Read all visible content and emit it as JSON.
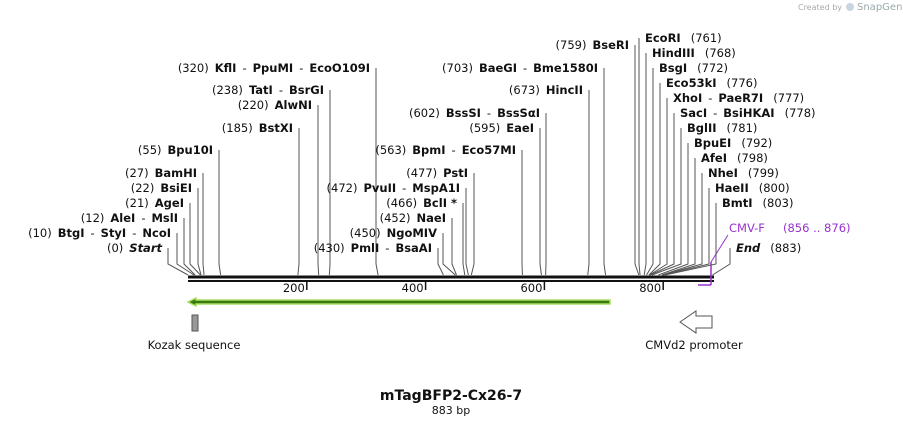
{
  "credit": {
    "prefix": "Created by",
    "brand": "SnapGene"
  },
  "title": "mTagBFP2-Cx26-7",
  "subtitle": "883 bp",
  "site_separator": "-",
  "sites": [
    {
      "position": {
        "value": 0,
        "label": "(0)"
      },
      "names": [
        "Start"
      ]
    },
    {
      "position": {
        "value": 10,
        "label": "(10)"
      },
      "names": [
        "BtgI",
        "StyI",
        "NcoI"
      ]
    },
    {
      "position": {
        "value": 12,
        "label": "(12)"
      },
      "names": [
        "AleI",
        "MslI"
      ]
    },
    {
      "position": {
        "value": 21,
        "label": "(21)"
      },
      "names": [
        "AgeI"
      ]
    },
    {
      "position": {
        "value": 22,
        "label": "(22)"
      },
      "names": [
        "BsiEI"
      ]
    },
    {
      "position": {
        "value": 27,
        "label": "(27)"
      },
      "names": [
        "BamHI"
      ]
    },
    {
      "position": {
        "value": 55,
        "label": "(55)"
      },
      "names": [
        "Bpu10I"
      ]
    },
    {
      "position": {
        "value": 185,
        "label": "(185)"
      },
      "names": [
        "BstXI"
      ]
    },
    {
      "position": {
        "value": 220,
        "label": "(220)"
      },
      "names": [
        "AlwNI"
      ]
    },
    {
      "position": {
        "value": 238,
        "label": "(238)"
      },
      "names": [
        "TatI",
        "BsrGI"
      ]
    },
    {
      "position": {
        "value": 320,
        "label": "(320)"
      },
      "names": [
        "KflI",
        "PpuMI",
        "EcoO109I"
      ]
    },
    {
      "position": {
        "value": 430,
        "label": "(430)"
      },
      "names": [
        "PmlI",
        "BsaAI"
      ]
    },
    {
      "position": {
        "value": 450,
        "label": "(450)"
      },
      "names": [
        "NgoMIV"
      ]
    },
    {
      "position": {
        "value": 452,
        "label": "(452)"
      },
      "names": [
        "NaeI"
      ]
    },
    {
      "position": {
        "value": 466,
        "label": "(466)"
      },
      "names": [
        "BclI *"
      ]
    },
    {
      "position": {
        "value": 472,
        "label": "(472)"
      },
      "names": [
        "PvuII",
        "MspA1I"
      ]
    },
    {
      "position": {
        "value": 477,
        "label": "(477)"
      },
      "names": [
        "PstI"
      ]
    },
    {
      "position": {
        "value": 563,
        "label": "(563)"
      },
      "names": [
        "BpmI",
        "Eco57MI"
      ]
    },
    {
      "position": {
        "value": 595,
        "label": "(595)"
      },
      "names": [
        "EaeI"
      ]
    },
    {
      "position": {
        "value": 602,
        "label": "(602)"
      },
      "names": [
        "BssSI",
        "BssSαI"
      ]
    },
    {
      "position": {
        "value": 673,
        "label": "(673)"
      },
      "names": [
        "HincII"
      ]
    },
    {
      "position": {
        "value": 703,
        "label": "(703)"
      },
      "names": [
        "BaeGI",
        "Bme1580I"
      ]
    },
    {
      "position": {
        "value": 759,
        "label": "(759)"
      },
      "names": [
        "BseRI"
      ]
    },
    {
      "position": {
        "value": 761,
        "label": "(761)"
      },
      "names": [
        "EcoRI"
      ]
    },
    {
      "position": {
        "value": 768,
        "label": "(768)"
      },
      "names": [
        "HindIII"
      ]
    },
    {
      "position": {
        "value": 772,
        "label": "(772)"
      },
      "names": [
        "BsgI"
      ]
    },
    {
      "position": {
        "value": 776,
        "label": "(776)"
      },
      "names": [
        "Eco53kI"
      ]
    },
    {
      "position": {
        "value": 777,
        "label": "(777)"
      },
      "names": [
        "XhoI",
        "PaeR7I"
      ]
    },
    {
      "position": {
        "value": 778,
        "label": "(778)"
      },
      "names": [
        "SacI",
        "BsiHKAI"
      ]
    },
    {
      "position": {
        "value": 781,
        "label": "(781)"
      },
      "names": [
        "BglII"
      ]
    },
    {
      "position": {
        "value": 792,
        "label": "(792)"
      },
      "names": [
        "BpuEI"
      ]
    },
    {
      "position": {
        "value": 798,
        "label": "(798)"
      },
      "names": [
        "AfeI"
      ]
    },
    {
      "position": {
        "value": 799,
        "label": "(799)"
      },
      "names": [
        "NheI"
      ]
    },
    {
      "position": {
        "value": 800,
        "label": "(800)"
      },
      "names": [
        "HaeII"
      ]
    },
    {
      "position": {
        "value": 803,
        "label": "(803)"
      },
      "names": [
        "BmtI"
      ]
    },
    {
      "position": {
        "value": 883,
        "label": "(883)"
      },
      "names": [
        "End"
      ]
    }
  ],
  "ruler": {
    "ticks": [
      200,
      400,
      600,
      800
    ]
  },
  "primer": {
    "name": "CMV-F",
    "range": "(856 .. 876)"
  },
  "features": [
    {
      "name": "Kozak sequence"
    },
    {
      "name": "CMVd2 promoter"
    }
  ]
}
